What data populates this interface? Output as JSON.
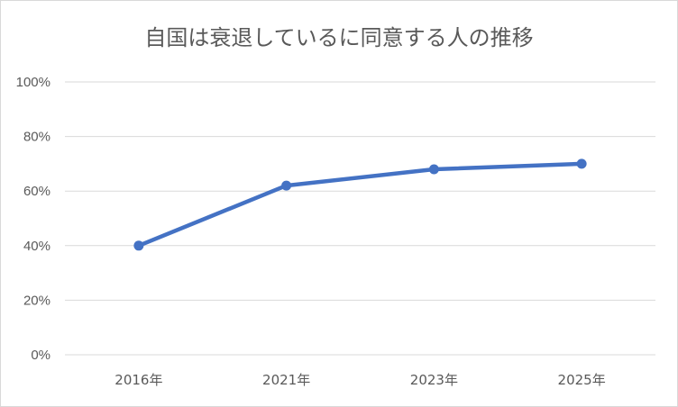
{
  "chart_data": {
    "type": "line",
    "title": "自国は衰退しているに同意する人の推移",
    "categories": [
      "2016年",
      "2021年",
      "2023年",
      "2025年"
    ],
    "series": [
      {
        "values": [
          0.4,
          0.62,
          0.68,
          0.7
        ]
      }
    ],
    "ylim": [
      0,
      1
    ],
    "y_ticks": [
      0,
      0.2,
      0.4,
      0.6,
      0.8,
      1.0
    ],
    "y_tick_labels": [
      "0%",
      "20%",
      "40%",
      "60%",
      "80%",
      "100%"
    ],
    "xlabel": "",
    "ylabel": "",
    "grid": true,
    "legend": "none",
    "line_color": "#4472c4",
    "grid_color": "#d9d9d9"
  }
}
